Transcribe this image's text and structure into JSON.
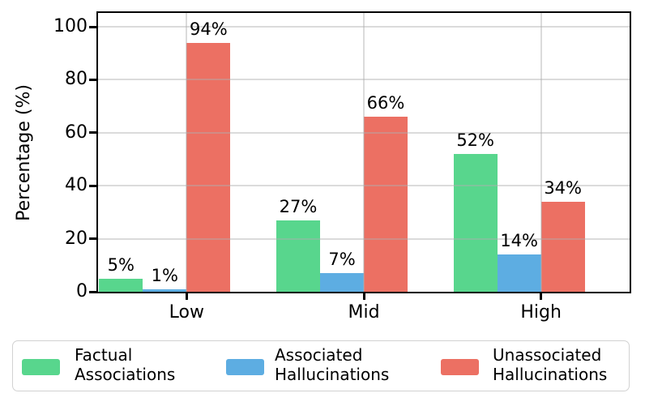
{
  "chart_data": {
    "type": "bar",
    "title": "",
    "xlabel": "",
    "ylabel": "Percentage (%)",
    "categories": [
      "Low",
      "Mid",
      "High"
    ],
    "series": [
      {
        "name": "Factual Associations",
        "color": "#58d68d",
        "values": [
          5,
          27,
          52
        ],
        "bar_labels": [
          "5%",
          "27%",
          "52%"
        ]
      },
      {
        "name": "Associated Hallucinations",
        "color": "#5dade2",
        "values": [
          1,
          7,
          14
        ],
        "bar_labels": [
          "1%",
          "7%",
          "14%"
        ]
      },
      {
        "name": "Unassociated Hallucinations",
        "color": "#ec7063",
        "values": [
          94,
          66,
          34
        ],
        "bar_labels": [
          "94%",
          "66%",
          "34%"
        ]
      }
    ],
    "yticks": [
      0,
      20,
      40,
      60,
      80,
      100
    ],
    "ylim": [
      0,
      105.2
    ],
    "grid": true,
    "legend_position": "bottom",
    "colors": {
      "spine": "#000000",
      "grid": "#b0b0b0",
      "background": "#ffffff",
      "text": "#000000"
    }
  }
}
